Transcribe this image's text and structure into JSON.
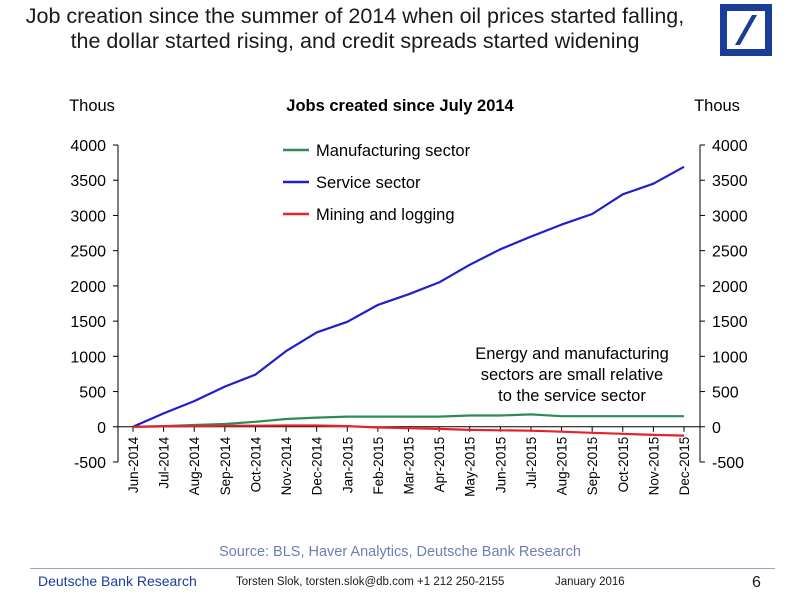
{
  "header": {
    "title_line1": "Job creation since the summer of 2014 when oil prices started falling,",
    "title_line2": "the dollar started rising, and credit spreads started widening"
  },
  "logo": {
    "name": "deutsche-bank-logo",
    "color": "#1a3d99"
  },
  "footer": {
    "source": "Source: BLS, Haver Analytics, Deutsche Bank Research",
    "brand": "Deutsche Bank Research",
    "author": "Torsten Slok, torsten.slok@db.com  +1 212 250-2155",
    "date": "January 2016",
    "page": "6"
  },
  "chart_data": {
    "type": "line",
    "title": "Jobs created since July 2014",
    "ylabel_left": "Thous",
    "ylabel_right": "Thous",
    "ylim": [
      -500,
      4000
    ],
    "yticks": [
      -500,
      0,
      500,
      1000,
      1500,
      2000,
      2500,
      3000,
      3500,
      4000
    ],
    "grid": false,
    "legend_position": "top-center",
    "x": [
      "Jun-2014",
      "Jul-2014",
      "Aug-2014",
      "Sep-2014",
      "Oct-2014",
      "Nov-2014",
      "Dec-2014",
      "Jan-2015",
      "Feb-2015",
      "Mar-2015",
      "Apr-2015",
      "May-2015",
      "Jun-2015",
      "Jul-2015",
      "Aug-2015",
      "Sep-2015",
      "Oct-2015",
      "Nov-2015",
      "Dec-2015"
    ],
    "series": [
      {
        "name": "Manufacturing sector",
        "color": "#2e8b57",
        "values": [
          0,
          10,
          25,
          40,
          70,
          110,
          130,
          145,
          145,
          145,
          145,
          160,
          160,
          175,
          150,
          150,
          150,
          150,
          150
        ]
      },
      {
        "name": "Service sector",
        "color": "#1f1fcc",
        "values": [
          0,
          190,
          365,
          570,
          740,
          1075,
          1340,
          1490,
          1730,
          1880,
          2050,
          2300,
          2520,
          2700,
          2870,
          3020,
          3300,
          3450,
          3690
        ]
      },
      {
        "name": "Mining and logging",
        "color": "#e8202a",
        "values": [
          0,
          5,
          10,
          15,
          15,
          18,
          18,
          10,
          -10,
          -20,
          -30,
          -45,
          -50,
          -55,
          -70,
          -85,
          -100,
          -115,
          -125
        ]
      }
    ],
    "annotation": [
      "Energy and manufacturing",
      "sectors are small relative",
      "to the service sector"
    ]
  }
}
